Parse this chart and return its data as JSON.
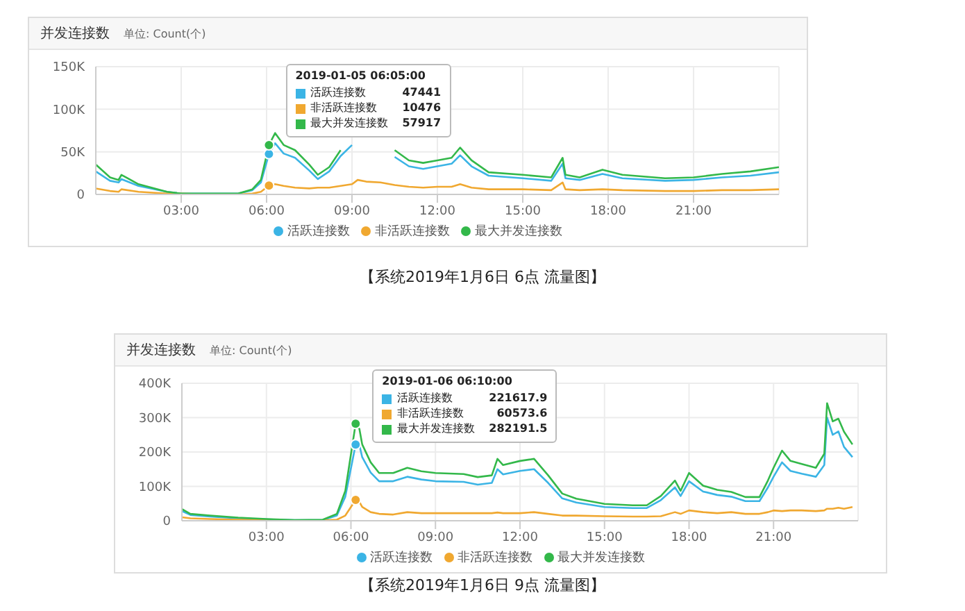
{
  "chart_data": [
    {
      "type": "line",
      "title": "并发连接数",
      "subtitle": "单位: Count(个)",
      "grid": true,
      "legend": "bottom",
      "marker": "none",
      "line_style": "solid",
      "x": [
        0,
        0.5,
        0.8,
        0.9,
        1.5,
        2.5,
        3,
        4,
        5,
        5.5,
        5.8,
        6.083,
        6.3,
        6.6,
        7,
        7.5,
        7.8,
        8.2,
        8.6,
        9,
        9.2,
        9.5,
        10,
        10.5,
        11,
        11.5,
        12,
        12.5,
        12.8,
        13.2,
        13.8,
        15,
        16,
        16.4,
        16.5,
        17,
        17.8,
        18.5,
        20,
        21,
        22,
        23,
        24
      ],
      "xlim": [
        0,
        24
      ],
      "xticks": [
        {
          "value": 3,
          "label": "03:00"
        },
        {
          "value": 6,
          "label": "06:00"
        },
        {
          "value": 9,
          "label": "09:00"
        },
        {
          "value": 12,
          "label": "12:00"
        },
        {
          "value": 15,
          "label": "15:00"
        },
        {
          "value": 18,
          "label": "18:00"
        },
        {
          "value": 21,
          "label": "21:00"
        }
      ],
      "ylim": [
        0,
        150000
      ],
      "yticks": [
        0,
        {
          "value": 50000,
          "label": "50K"
        },
        {
          "value": 100000,
          "label": "100K"
        },
        {
          "value": 150000,
          "label": "150K"
        }
      ],
      "series": [
        {
          "name": "活跃连接数",
          "color": "#3bb4e5",
          "values": [
            27000,
            16000,
            14000,
            18000,
            10000,
            3000,
            1000,
            1000,
            1000,
            5000,
            14000,
            47441,
            60000,
            48000,
            43000,
            28000,
            18000,
            27000,
            45000,
            58000,
            null,
            null,
            null,
            44000,
            33000,
            30000,
            33000,
            36000,
            46000,
            33000,
            22000,
            19000,
            16000,
            36000,
            19000,
            17000,
            24000,
            19000,
            16000,
            17000,
            20000,
            22000,
            26000
          ]
        },
        {
          "name": "非活跃连接数",
          "color": "#f0a830",
          "values": [
            7000,
            4000,
            3000,
            6000,
            3000,
            1000,
            1000,
            0,
            0,
            1000,
            3000,
            10476,
            12000,
            10000,
            8000,
            7000,
            8000,
            8000,
            10000,
            12000,
            17000,
            15000,
            14000,
            11000,
            9000,
            8000,
            9000,
            9000,
            12000,
            8000,
            6000,
            6000,
            5000,
            14000,
            6000,
            5000,
            6000,
            5000,
            4000,
            4000,
            5000,
            5000,
            6000
          ]
        },
        {
          "name": "最大并发连接数",
          "color": "#33b84a",
          "values": [
            35000,
            20000,
            17000,
            23000,
            12000,
            3000,
            1000,
            1000,
            1000,
            6000,
            17000,
            57917,
            72000,
            58000,
            52000,
            35000,
            23000,
            32000,
            52000,
            null,
            null,
            null,
            null,
            52000,
            40000,
            37000,
            40000,
            43000,
            55000,
            40000,
            26000,
            23000,
            20000,
            43000,
            23000,
            20000,
            29000,
            23000,
            19000,
            20000,
            24000,
            27000,
            32000
          ]
        }
      ],
      "annotations": [
        "2019-01-05 06:05:00",
        "47441",
        "10476",
        "57917",
        "【系统2019年1月6日 6点 流量图】"
      ]
    },
    {
      "type": "line",
      "title": "并发连接数",
      "subtitle": "单位: Count(个)",
      "grid": true,
      "legend": "bottom",
      "marker": "none",
      "line_style": "solid",
      "x": [
        0,
        0.3,
        1,
        2,
        3,
        4,
        5,
        5.5,
        5.8,
        6.167,
        6.3,
        6.4,
        6.7,
        7,
        7.5,
        8,
        8.5,
        9,
        10,
        10.5,
        11,
        11.2,
        11.4,
        12,
        12.5,
        13,
        13.5,
        14,
        15,
        16,
        16.5,
        17,
        17.5,
        17.7,
        18,
        18.5,
        19,
        19.5,
        20,
        20.5,
        20.8,
        21,
        21.3,
        21.6,
        22,
        22.5,
        22.8,
        22.9,
        23.1,
        23.3,
        23.5,
        23.8
      ],
      "xlim": [
        0,
        24
      ],
      "xticks": [
        {
          "value": 3,
          "label": "03:00"
        },
        {
          "value": 6,
          "label": "06:00"
        },
        {
          "value": 9,
          "label": "09:00"
        },
        {
          "value": 12,
          "label": "12:00"
        },
        {
          "value": 15,
          "label": "15:00"
        },
        {
          "value": 18,
          "label": "18:00"
        },
        {
          "value": 21,
          "label": "21:00"
        }
      ],
      "ylim": [
        0,
        400000
      ],
      "yticks": [
        0,
        {
          "value": 100000,
          "label": "100K"
        },
        {
          "value": 200000,
          "label": "200K"
        },
        {
          "value": 300000,
          "label": "300K"
        },
        {
          "value": 400000,
          "label": "400K"
        }
      ],
      "series": [
        {
          "name": "活跃连接数",
          "color": "#3bb4e5",
          "values": [
            28000,
            17000,
            12000,
            7000,
            4000,
            2000,
            2000,
            15000,
            70000,
            221617.9,
            220000,
            185000,
            140000,
            115000,
            115000,
            128000,
            120000,
            115000,
            113000,
            105000,
            110000,
            150000,
            135000,
            145000,
            150000,
            110000,
            65000,
            53000,
            40000,
            37000,
            37000,
            60000,
            97000,
            72000,
            115000,
            85000,
            75000,
            70000,
            57000,
            57000,
            97000,
            128000,
            170000,
            145000,
            137000,
            128000,
            162000,
            300000,
            250000,
            260000,
            215000,
            185000
          ]
        },
        {
          "name": "非活跃连接数",
          "color": "#f0a830",
          "values": [
            10000,
            7000,
            5000,
            3000,
            2000,
            1000,
            1000,
            3000,
            15000,
            60573.6,
            55000,
            40000,
            25000,
            20000,
            18000,
            25000,
            22000,
            22000,
            22000,
            22000,
            22000,
            24000,
            22000,
            22000,
            25000,
            20000,
            15000,
            15000,
            13000,
            12000,
            12000,
            13000,
            25000,
            20000,
            30000,
            25000,
            22000,
            25000,
            20000,
            20000,
            25000,
            30000,
            28000,
            30000,
            30000,
            28000,
            30000,
            35000,
            35000,
            38000,
            35000,
            40000
          ]
        },
        {
          "name": "最大并发连接数",
          "color": "#33b84a",
          "values": [
            34000,
            20000,
            15000,
            9000,
            5000,
            2000,
            3000,
            20000,
            87000,
            282191.5,
            267000,
            222000,
            170000,
            139000,
            139000,
            154000,
            144000,
            139000,
            136000,
            127000,
            132000,
            180000,
            162000,
            174000,
            180000,
            132000,
            79000,
            64000,
            49000,
            45000,
            45000,
            72000,
            117000,
            87000,
            139000,
            102000,
            90000,
            84000,
            69000,
            69000,
            117000,
            154000,
            204000,
            174000,
            165000,
            154000,
            195000,
            342000,
            289000,
            297000,
            259000,
            222000
          ]
        }
      ],
      "annotations": [
        "2019-01-06 06:10:00",
        "221617.9",
        "60573.6",
        "282191.5",
        "【系统2019年1月6日 9点 流量图】"
      ]
    }
  ]
}
